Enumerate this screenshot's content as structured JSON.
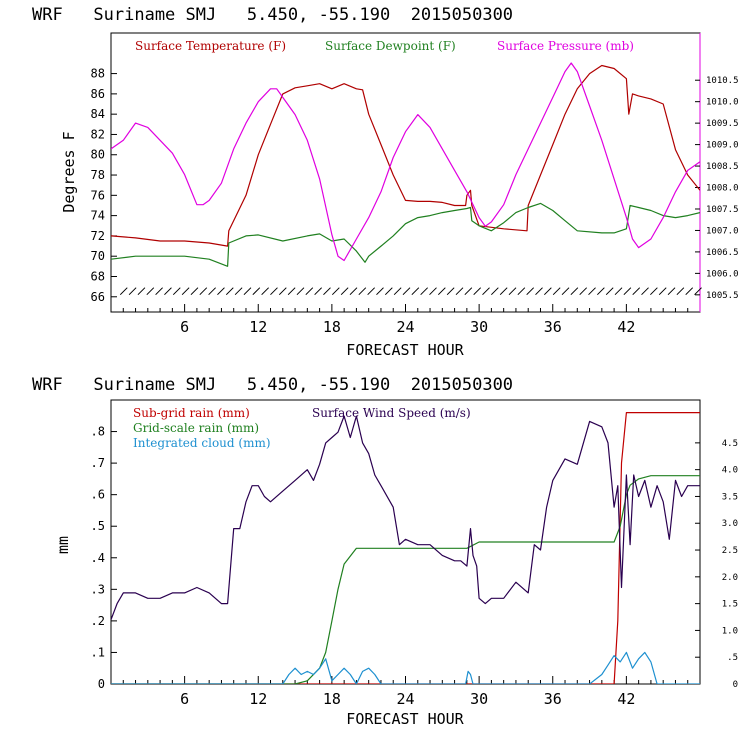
{
  "colors": {
    "temperature": "#b00000",
    "dewpoint": "#208020",
    "pressure": "#e000e0",
    "subgrid_rain": "#c00000",
    "gridscale_rain": "#208020",
    "integrated_cloud": "#1e90d0",
    "wind_speed": "#2a0050"
  },
  "chart_data": [
    {
      "type": "line",
      "title": "WRF   Suriname SMJ   5.450, -55.190  2015050300",
      "xlabel": "FORECAST HOUR",
      "ylabel": "Degrees F",
      "xlim": [
        0,
        48
      ],
      "ylim": [
        64.5,
        92
      ],
      "xticks": [
        6,
        12,
        18,
        24,
        30,
        36,
        42
      ],
      "yticks": [
        66,
        68,
        70,
        72,
        74,
        76,
        78,
        80,
        82,
        84,
        86,
        88
      ],
      "right_axis": {
        "label_units": "mb",
        "ylim": [
          1005.1,
          1011.6
        ],
        "ticks": [
          "1005.5",
          "1006.0",
          "1006.5",
          "1007.0",
          "1007.5",
          "1008.0",
          "1008.5",
          "1009.0",
          "1009.5",
          "1010.0",
          "1010.5"
        ]
      },
      "legend": [
        "Surface Temperature (F)",
        "Surface Dewpoint (F)",
        "Surface Pressure (mb)"
      ],
      "series": [
        {
          "name": "Surface Temperature (F)",
          "axis": "left",
          "color": "#b00000",
          "x": [
            0,
            2,
            4,
            6,
            8,
            9.5,
            9.6,
            11,
            12,
            13,
            14,
            15,
            16,
            17,
            18,
            19,
            20,
            20.5,
            21,
            22,
            23,
            24,
            25,
            26,
            27,
            28,
            28.9,
            29,
            29.3,
            29.4,
            30,
            32,
            33.9,
            34,
            35,
            36,
            37,
            38,
            39,
            40,
            41,
            42,
            42.2,
            42.5,
            43,
            44,
            45,
            46,
            47,
            48
          ],
          "y": [
            72,
            71.8,
            71.5,
            71.5,
            71.3,
            71,
            72.5,
            76,
            80,
            83,
            86,
            86.6,
            86.8,
            87,
            86.5,
            87,
            86.5,
            86.4,
            84,
            81,
            78,
            75.5,
            75.4,
            75.4,
            75.3,
            75,
            75,
            76,
            76.5,
            75,
            73,
            72.7,
            72.5,
            75,
            78,
            81,
            84,
            86.5,
            88,
            88.8,
            88.5,
            87.5,
            84,
            86,
            85.8,
            85.5,
            85,
            80.5,
            78,
            76.5
          ]
        },
        {
          "name": "Surface Dewpoint (F)",
          "axis": "left",
          "color": "#208020",
          "x": [
            0,
            2,
            4,
            6,
            8,
            9.5,
            9.6,
            11,
            12,
            14,
            16,
            17,
            18,
            19,
            20,
            20.7,
            21,
            22,
            23,
            24,
            25,
            26,
            27,
            28,
            29,
            29.3,
            29.4,
            30,
            31,
            32,
            33,
            34,
            35,
            36,
            37,
            38,
            40,
            41,
            42,
            42.3,
            43,
            44,
            45,
            46,
            47,
            48
          ],
          "y": [
            69.7,
            70,
            70,
            70,
            69.7,
            69,
            71.3,
            72,
            72.1,
            71.5,
            72,
            72.2,
            71.5,
            71.7,
            70.5,
            69.4,
            70,
            71,
            72,
            73.2,
            73.8,
            74,
            74.3,
            74.5,
            74.7,
            74.8,
            73.5,
            73,
            72.5,
            73.3,
            74.3,
            74.8,
            75.2,
            74.5,
            73.5,
            72.5,
            72.3,
            72.3,
            72.7,
            75,
            74.8,
            74.5,
            74,
            73.8,
            74,
            74.3
          ]
        },
        {
          "name": "Surface Pressure (mb)",
          "axis": "right",
          "color": "#e000e0",
          "x": [
            0,
            1,
            2,
            3,
            4,
            5,
            6,
            7,
            7.5,
            8,
            9,
            10,
            11,
            12,
            13,
            13.5,
            14,
            15,
            16,
            17,
            18,
            18.5,
            19,
            20,
            21,
            22,
            23,
            24,
            25,
            26,
            27,
            28,
            29,
            30,
            30.5,
            31,
            32,
            33,
            34,
            35,
            36,
            37,
            37.5,
            38,
            39,
            40,
            41,
            42,
            42.5,
            43,
            44,
            45,
            46,
            47,
            48
          ],
          "y": [
            1008.9,
            1009.1,
            1009.5,
            1009.4,
            1009.1,
            1008.8,
            1008.3,
            1007.6,
            1007.6,
            1007.7,
            1008.1,
            1008.9,
            1009.5,
            1010.0,
            1010.3,
            1010.3,
            1010.1,
            1009.7,
            1009.1,
            1008.2,
            1006.9,
            1006.4,
            1006.3,
            1006.8,
            1007.3,
            1007.9,
            1008.7,
            1009.3,
            1009.7,
            1009.4,
            1008.9,
            1008.4,
            1007.9,
            1007.3,
            1007.1,
            1007.2,
            1007.6,
            1008.3,
            1008.9,
            1009.5,
            1010.1,
            1010.7,
            1010.9,
            1010.7,
            1009.9,
            1009.1,
            1008.2,
            1007.3,
            1006.8,
            1006.6,
            1006.8,
            1007.3,
            1007.9,
            1008.4,
            1008.6
          ]
        }
      ]
    },
    {
      "type": "line",
      "title": "WRF   Suriname SMJ   5.450, -55.190  2015050300",
      "xlabel": "FORECAST HOUR",
      "ylabel": "mm",
      "xlim": [
        0,
        48
      ],
      "ylim": [
        0,
        0.9
      ],
      "xticks": [
        6,
        12,
        18,
        24,
        30,
        36,
        42
      ],
      "yticks": [
        0,
        0.1,
        0.2,
        0.3,
        0.4,
        0.5,
        0.6,
        0.7,
        0.8
      ],
      "ytick_labels": [
        "0",
        ".1",
        ".2",
        ".3",
        ".4",
        ".5",
        ".6",
        ".7",
        ".8"
      ],
      "right_axis": {
        "label_units": "m/s",
        "ylim": [
          0,
          5.3
        ],
        "ticks": [
          0,
          0.5,
          1.0,
          1.5,
          2.0,
          2.5,
          3.0,
          3.5,
          4.0,
          4.5
        ],
        "tick_labels": [
          "0",
          ".5",
          "1.0",
          "1.5",
          "2.0",
          "2.5",
          "3.0",
          "3.5",
          "4.0",
          "4.5"
        ]
      },
      "legend": [
        "Sub-grid rain (mm)",
        "Surface Wind Speed (m/s)",
        "Grid-scale rain (mm)",
        "Integrated cloud (mm)"
      ],
      "series": [
        {
          "name": "Sub-grid rain (mm)",
          "axis": "left",
          "color": "#c00000",
          "x": [
            0,
            41,
            41.3,
            41.6,
            42,
            48
          ],
          "y": [
            0,
            0,
            0.2,
            0.7,
            0.86,
            0.86
          ]
        },
        {
          "name": "Grid-scale rain (mm)",
          "axis": "left",
          "color": "#208020",
          "x": [
            0,
            14,
            15,
            16,
            17,
            17.5,
            18,
            18.5,
            19,
            20,
            29,
            30,
            41,
            41.5,
            42,
            42.3,
            43,
            44,
            45,
            48
          ],
          "y": [
            0,
            0,
            0,
            0.01,
            0.05,
            0.1,
            0.2,
            0.3,
            0.38,
            0.43,
            0.43,
            0.45,
            0.45,
            0.5,
            0.6,
            0.63,
            0.65,
            0.66,
            0.66,
            0.66
          ]
        },
        {
          "name": "Integrated cloud (mm)",
          "axis": "left",
          "color": "#1e90d0",
          "x": [
            0,
            14,
            14.5,
            15,
            15.5,
            16,
            16.5,
            17,
            17.5,
            18,
            18.5,
            19,
            19.5,
            20,
            20.5,
            21,
            21.5,
            22,
            28.9,
            29.1,
            29.3,
            29.5,
            39,
            40,
            40.5,
            41,
            41.5,
            42,
            42.5,
            43,
            43.5,
            44,
            44.5,
            48
          ],
          "y": [
            0,
            0,
            0.03,
            0.05,
            0.03,
            0.04,
            0.03,
            0.05,
            0.08,
            0.01,
            0.03,
            0.05,
            0.03,
            0,
            0.04,
            0.05,
            0.03,
            0,
            0,
            0.04,
            0.03,
            0,
            0,
            0.03,
            0.06,
            0.09,
            0.07,
            0.1,
            0.05,
            0.08,
            0.1,
            0.07,
            0,
            0
          ]
        },
        {
          "name": "Surface Wind Speed (m/s)",
          "axis": "right",
          "color": "#2a0050",
          "x": [
            0,
            0.5,
            1,
            2,
            3,
            4,
            5,
            6,
            7,
            8,
            9,
            9.5,
            10,
            10.5,
            11,
            11.5,
            12,
            12.5,
            13,
            14,
            15,
            16,
            16.5,
            17,
            17.5,
            18,
            18.5,
            19,
            19.5,
            20,
            20.5,
            21,
            21.5,
            22,
            23,
            23.5,
            24,
            25,
            26,
            27,
            28,
            28.5,
            29,
            29.3,
            29.5,
            29.8,
            30,
            30.5,
            31,
            31.5,
            32,
            33,
            34,
            34.5,
            35,
            35.5,
            36,
            37,
            38,
            39,
            40,
            40.5,
            41,
            41.3,
            41.6,
            42,
            42.3,
            42.6,
            43,
            43.5,
            44,
            44.5,
            45,
            45.5,
            46,
            46.5,
            47,
            48
          ],
          "y": [
            1.2,
            1.5,
            1.7,
            1.7,
            1.6,
            1.6,
            1.7,
            1.7,
            1.8,
            1.7,
            1.5,
            1.5,
            2.9,
            2.9,
            3.4,
            3.7,
            3.7,
            3.5,
            3.4,
            3.6,
            3.8,
            4.0,
            3.8,
            4.1,
            4.5,
            4.6,
            4.7,
            5.0,
            4.6,
            5.0,
            4.5,
            4.3,
            3.9,
            3.7,
            3.3,
            2.6,
            2.7,
            2.6,
            2.6,
            2.4,
            2.3,
            2.3,
            2.2,
            2.9,
            2.4,
            2.2,
            1.6,
            1.5,
            1.6,
            1.6,
            1.6,
            1.9,
            1.7,
            2.6,
            2.5,
            3.3,
            3.8,
            4.2,
            4.1,
            4.9,
            4.8,
            4.5,
            3.3,
            3.7,
            1.8,
            3.9,
            2.6,
            3.9,
            3.5,
            3.8,
            3.3,
            3.7,
            3.4,
            2.7,
            3.8,
            3.5,
            3.7,
            3.7
          ]
        }
      ]
    }
  ]
}
